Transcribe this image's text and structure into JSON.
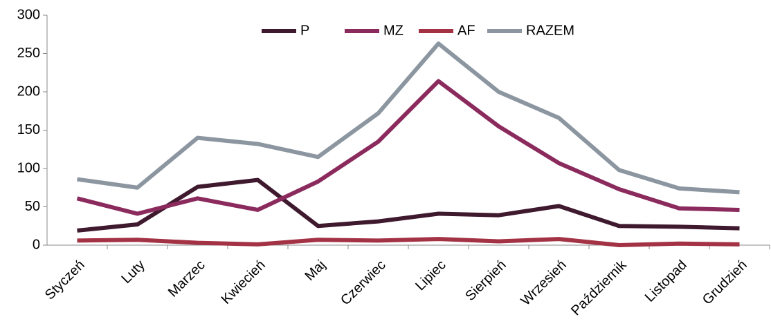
{
  "chart_data": {
    "type": "line",
    "categories": [
      "Styczeń",
      "Luty",
      "Marzec",
      "Kwiecień",
      "Maj",
      "Czerwiec",
      "Lipiec",
      "Sierpień",
      "Wrzesień",
      "Październik",
      "Listopad",
      "Grudzień"
    ],
    "series": [
      {
        "name": "P",
        "color": "#3f1a2e",
        "values": [
          19,
          27,
          76,
          85,
          25,
          31,
          41,
          39,
          51,
          25,
          24,
          22
        ]
      },
      {
        "name": "MZ",
        "color": "#8b2a5c",
        "values": [
          61,
          41,
          61,
          46,
          83,
          135,
          214,
          155,
          107,
          73,
          48,
          46
        ]
      },
      {
        "name": "AF",
        "color": "#a33245",
        "values": [
          6,
          7,
          3,
          1,
          7,
          6,
          8,
          5,
          8,
          0,
          2,
          1
        ]
      },
      {
        "name": "RAZEM",
        "color": "#8c96a0",
        "values": [
          86,
          75,
          140,
          132,
          115,
          172,
          263,
          200,
          166,
          98,
          74,
          69
        ]
      }
    ],
    "ylim": [
      0,
      300
    ],
    "yticks": [
      0,
      50,
      100,
      150,
      200,
      250,
      300
    ],
    "grid": false,
    "legend": "top"
  }
}
